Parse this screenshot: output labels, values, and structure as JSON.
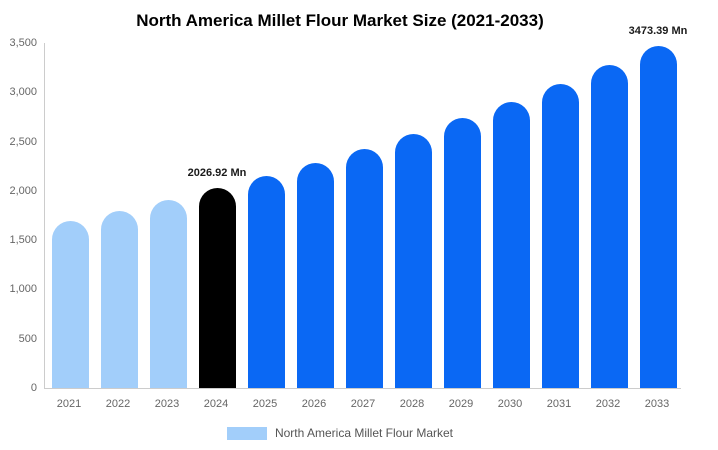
{
  "title": "North America Millet Flour Market Size (2021-2033)",
  "colors": {
    "historical_bar": "#A2CEFA",
    "current_year_bar": "#000000",
    "forecast_bar": "#0A68F4",
    "axis_line": "#cccccc",
    "tick_text": "#666666",
    "annotation_text": "#1a1a1a",
    "background": "#ffffff"
  },
  "legend": {
    "label": "North America Millet Flour Market",
    "swatch_color": "#A2CEFA"
  },
  "chart_data": {
    "type": "bar",
    "title": "North America Millet Flour Market Size (2021-2033)",
    "xlabel": "",
    "ylabel": "",
    "unit": "Mn",
    "categories": [
      "2021",
      "2022",
      "2023",
      "2024",
      "2025",
      "2026",
      "2027",
      "2028",
      "2029",
      "2030",
      "2031",
      "2032",
      "2033"
    ],
    "values": [
      1690,
      1795,
      1905,
      2026.92,
      2152,
      2285,
      2426,
      2576,
      2735,
      2904,
      3083,
      3273,
      3473.39
    ],
    "bar_colors": [
      "#A2CEFA",
      "#A2CEFA",
      "#A2CEFA",
      "#000000",
      "#0A68F4",
      "#0A68F4",
      "#0A68F4",
      "#0A68F4",
      "#0A68F4",
      "#0A68F4",
      "#0A68F4",
      "#0A68F4",
      "#0A68F4"
    ],
    "annotations": [
      {
        "category_index": 3,
        "text": "2026.92 Mn"
      },
      {
        "category_index": 12,
        "text": "3473.39 Mn"
      }
    ],
    "ylim": [
      0,
      3500
    ],
    "yticks": [
      {
        "value": 0,
        "label": "0"
      },
      {
        "value": 500,
        "label": "500"
      },
      {
        "value": 1000,
        "label": "1,000"
      },
      {
        "value": 1500,
        "label": "1,500"
      },
      {
        "value": 2000,
        "label": "2,000"
      },
      {
        "value": 2500,
        "label": "2,500"
      },
      {
        "value": 3000,
        "label": "3,000"
      },
      {
        "value": 3500,
        "label": "3,500"
      }
    ],
    "grid": false,
    "legend_position": "bottom",
    "legend_entries": [
      "North America Millet Flour Market"
    ]
  }
}
